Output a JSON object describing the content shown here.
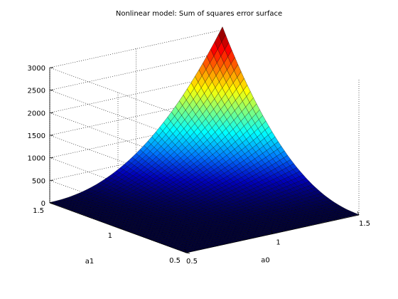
{
  "chart_data": {
    "type": "surface",
    "title": "Nonlinear model: Sum of squares error surface",
    "xlabel": "a0",
    "ylabel": "a1",
    "zlabel": "",
    "xlim": [
      0.5,
      1.5
    ],
    "ylim": [
      0.5,
      1.5
    ],
    "zlim": [
      0,
      3000
    ],
    "x_ticks": [
      0.5,
      1,
      1.5
    ],
    "y_ticks": [
      0.5,
      1,
      1.5
    ],
    "z_ticks": [
      0,
      500,
      1000,
      1500,
      2000,
      2500,
      3000
    ],
    "grid": true,
    "colormap": "jet",
    "corner_values": [
      {
        "a0": 0.5,
        "a1": 0.5,
        "sse": 0
      },
      {
        "a0": 1.5,
        "a1": 0.5,
        "sse": 20
      },
      {
        "a0": 0.5,
        "a1": 1.5,
        "sse": 20
      },
      {
        "a0": 1.5,
        "a1": 1.5,
        "sse": 3050
      }
    ],
    "surface_shape": "sse increases rapidly as both a0 and a1 approach 1.5"
  }
}
